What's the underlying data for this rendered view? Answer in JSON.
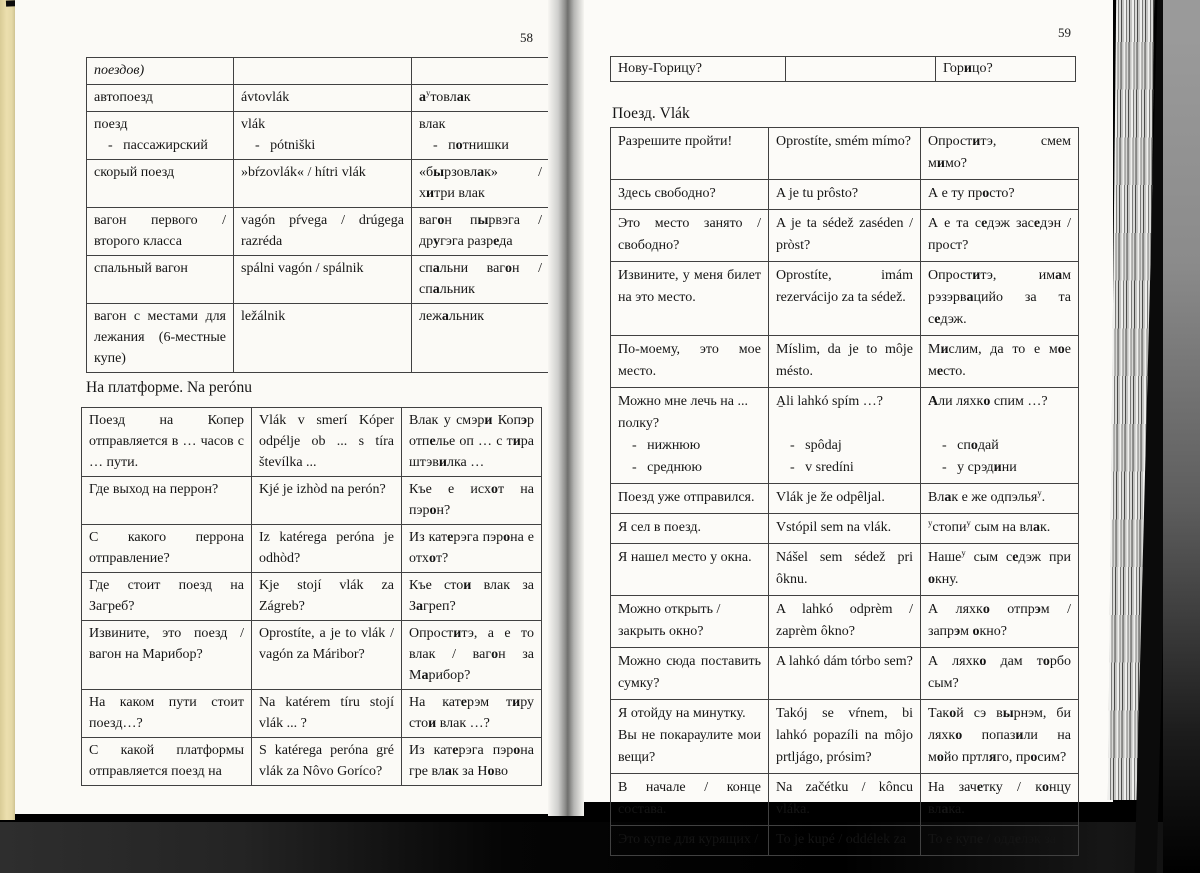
{
  "left_page": {
    "number": "58",
    "section_heading": "На платформе. Na perónu",
    "vocab_table_rows": [
      [
        "_поездов)_",
        "",
        ""
      ],
      [
        "автопоезд",
        "ávtovlák",
        "*а*^у^товл*а*к"
      ],
      [
        "поезд\n    -   пассажирский",
        "vlák\n    -   pótniški",
        "влак\n    -   п*о*тнишки"
      ],
      [
        "скорый поезд",
        "»bŕzovlák« / hítri vlák",
        "«б*ы*рзовл*а*к» / х*и*три влак"
      ],
      [
        "вагон первого / второго класса",
        "vagón pŕvega / drúgega razréda",
        "ваг*о*н п*ы*рвэга / др*у*гэга разр*е*да"
      ],
      [
        "спальный вагон",
        "spálni vagón / spálnik",
        "сп*а*льни ваг*о*н / сп*а*льник"
      ],
      [
        "вагон с местами для лежания (6-местные купе)",
        "ležálnik",
        "леж*а*льник"
      ]
    ],
    "platform_table_rows": [
      [
        "Поезд на Копер отправляется в … часов с … пути.",
        "Vlák v smerí Kóper odpélje ob ... s tíra števílka ...",
        "Влак у смэр*и* Коп*э*р отп*е*лье оп … с т*и*ра штэв*и*лка …"
      ],
      [
        "Где выход на перрон?",
        "Kjé je izhòd na perón?",
        "Къе е исх*о*т на пэр*о*н?"
      ],
      [
        "С какого перрона отправление?",
        "Iz katérega peróna je odhòd?",
        "Из кат*е*рэга пэр*о*на е отх*о*т?"
      ],
      [
        "Где стоит поезд на Загреб?",
        "Kje stojí vlák za Zágreb?",
        "Къе сто*и* влак за З*а*греп?"
      ],
      [
        "Извините, это поезд / вагон на Марибор?",
        "Oprostíte, a je to vlák / vagón za Máribor?",
        "Опрост*и*тэ, а е то влак / ваг*о*н за М*а*рибор?"
      ],
      [
        "На каком пути стоит поезд…?",
        "Na katérem tíru stojí vlák ... ?",
        "На кат*е*рэм т*и*ру сто*и* влак …?"
      ],
      [
        "С какой платформы отправляется поезд на",
        "S katérega peróna gré vlák za Nôvo Goríco?",
        "Из кат*е*рэга пэр*о*на гре вл*а*к за Н*о*во"
      ]
    ]
  },
  "right_page": {
    "number": "59",
    "section_heading": "Поезд. Vlák",
    "carryover_table_rows": [
      [
        "Нову-Горицу?",
        "",
        "Гор*и*цо?"
      ]
    ],
    "train_table_rows": [
      [
        "Разрешите пройти!",
        "Oprostíte, smém mímo?",
        "Опрост*и*тэ, смем м*и*мо?"
      ],
      [
        "Здесь свободно?",
        "A je tu prôsto?",
        "А е ту пр*о*сто?"
      ],
      [
        "Это место занято / свободно?",
        "A je ta sédež zaséden / pròst?",
        "А е та с*е*дэж зас*е*дэн / прост?"
      ],
      [
        "Извините, у меня билет на это место.",
        "Oprostíte, imám rezervácijo za ta sédež.",
        "Опрост*и*тэ, им*а*м рэзэрв*а*цийо за та с*е*дэж."
      ],
      [
        "По-моему, это мое место.",
        "Míslim, da je to môje mésto.",
        "М*и*слим, да то е м*о*е м*е*сто."
      ],
      [
        "Можно мне лечь на ...\nполку?\n    -   нижнюю\n    -   среднюю",
        "A̱li lahkó spím …?\n\n    -   spôdaj\n    -   v sredíni",
        "*А*ли ляхк*о* спим …?\n\n    -   сп*о*дай\n    -   у срэд*и*ни"
      ],
      [
        "Поезд уже отправился.",
        "Vlák je že odpêljal.",
        "Вл*а*к е же одпэлья^у^."
      ],
      [
        "Я сел в поезд.",
        "Vstópil sem na vlák.",
        "^у^стопи^у^ сым на вл*а*к."
      ],
      [
        "Я нашел место у окна.",
        "Nášel sem sédež pri ôknu.",
        "Наше^у^ сым с*е*дэж при *о*кну."
      ],
      [
        "Можно открыть /\nзакрыть окно?",
        "A lahkó odprèm / zaprèm ôkno?",
        "А ляхк*о* отпр*э*м / запр*э*м *о*кно?"
      ],
      [
        "Можно сюда поставить сумку?",
        "A lahkó dám tórbo sem?",
        "А ляхк*о* дам т*о*рбо сым?"
      ],
      [
        "Я отойду на минутку.\nВы не покараулите мои вещи?",
        "Takój se vŕnem, bi lahkó popazíli na môjo prtljágo, prósim?",
        "Так*о*й сэ в*ы*рнэм, би ляхк*о* попаз*и*ли на м*о*йо пртл*я*го, пр*о*сим?"
      ],
      [
        "В начале / конце состава.",
        "Na začétku / kôncu vláka.",
        "На зач*е*тку / к*о*нцу вл*а*ка."
      ],
      [
        "Это купе для курящих /",
        "To je kupé / oddélek za",
        "То е куп*е* / одд*е*лэк за"
      ]
    ]
  }
}
